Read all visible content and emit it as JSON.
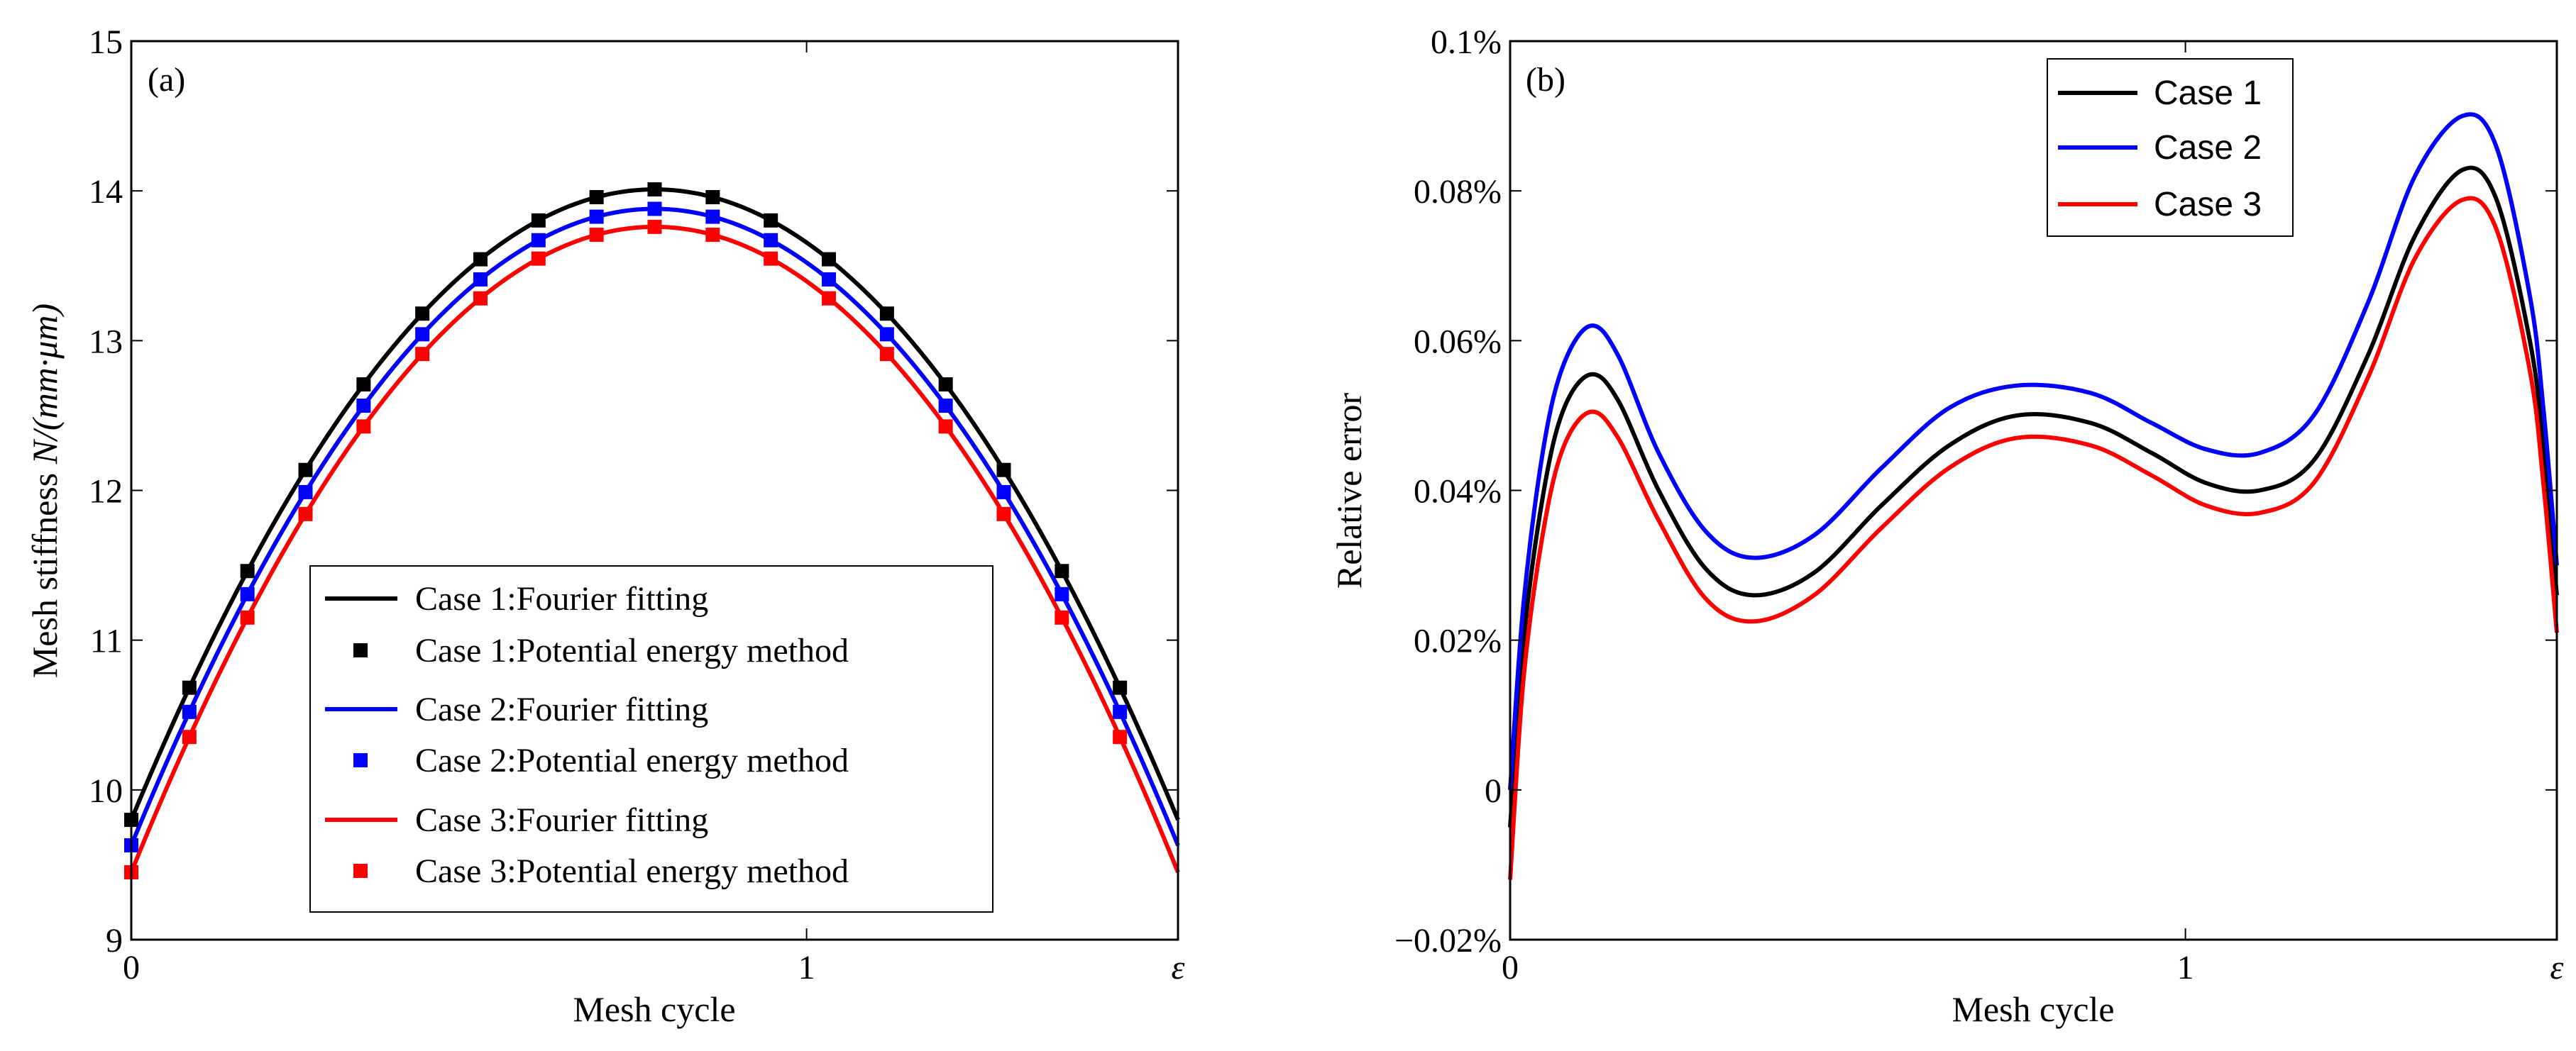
{
  "figure": {
    "panels": [
      "(a)",
      "(b)"
    ]
  },
  "chart_data": [
    {
      "type": "line",
      "panel_label": "(a)",
      "title": "",
      "xlabel": "Mesh cycle",
      "ylabel_prefix": "Mesh stiffness ",
      "ylabel_unit": "N/(mm·μm)",
      "xlim": [
        0,
        1.55
      ],
      "ylim": [
        9,
        15
      ],
      "xticks": [
        {
          "value": 0,
          "label": "0"
        },
        {
          "value": 1,
          "label": "1"
        },
        {
          "value": 1.55,
          "label": "ε"
        }
      ],
      "yticks": [
        9,
        10,
        11,
        12,
        13,
        14,
        15
      ],
      "peak_x": 0.775,
      "half_width": 0.775,
      "curve_samples": 160,
      "marker_x": [
        0,
        0.086,
        0.172,
        0.258,
        0.344,
        0.431,
        0.517,
        0.603,
        0.689,
        0.775,
        0.861,
        0.947,
        1.033,
        1.119,
        1.206,
        1.292,
        1.378,
        1.464
      ],
      "series": [
        {
          "name": "Case 1",
          "color": "#000000",
          "peak": 14.01,
          "edge": 9.8,
          "line_label": "Case 1:Fourier fitting",
          "marker_label": "Case 1:Potential energy method"
        },
        {
          "name": "Case 2",
          "color": "#0000ff",
          "peak": 13.88,
          "edge": 9.63,
          "line_label": "Case 2:Fourier fitting",
          "marker_label": "Case 2:Potential energy method"
        },
        {
          "name": "Case 3",
          "color": "#ff0000",
          "peak": 13.76,
          "edge": 9.45,
          "line_label": "Case 3:Fourier fitting",
          "marker_label": "Case 3:Potential energy method"
        }
      ],
      "legend_position": "bottom-center"
    },
    {
      "type": "line",
      "panel_label": "(b)",
      "title": "",
      "xlabel": "Mesh cycle",
      "ylabel": "Relative error",
      "xlim": [
        0,
        1.55
      ],
      "ylim": [
        -0.02,
        0.1
      ],
      "xticks": [
        {
          "value": 0,
          "label": "0"
        },
        {
          "value": 1,
          "label": "1"
        },
        {
          "value": 1.55,
          "label": "ε"
        }
      ],
      "yticks": [
        {
          "value": -0.02,
          "label": "−0.02%"
        },
        {
          "value": 0,
          "label": "0"
        },
        {
          "value": 0.02,
          "label": "0.02%"
        },
        {
          "value": 0.04,
          "label": "0.04%"
        },
        {
          "value": 0.06,
          "label": "0.06%"
        },
        {
          "value": 0.08,
          "label": "0.08%"
        },
        {
          "value": 0.1,
          "label": "0.1%"
        }
      ],
      "series": [
        {
          "name": "Case 1",
          "color": "#000000",
          "x": [
            0,
            0.02,
            0.05,
            0.08,
            0.12,
            0.16,
            0.22,
            0.29,
            0.36,
            0.45,
            0.55,
            0.65,
            0.75,
            0.86,
            0.95,
            1.03,
            1.11,
            1.19,
            1.27,
            1.34,
            1.41,
            1.46,
            1.51,
            1.53,
            1.55
          ],
          "y": [
            -0.005,
            0.02,
            0.04,
            0.051,
            0.0555,
            0.052,
            0.04,
            0.0295,
            0.026,
            0.029,
            0.038,
            0.046,
            0.05,
            0.049,
            0.045,
            0.041,
            0.04,
            0.044,
            0.058,
            0.074,
            0.0828,
            0.079,
            0.06,
            0.046,
            0.026
          ]
        },
        {
          "name": "Case 2",
          "color": "#0000ff",
          "x": [
            0,
            0.02,
            0.05,
            0.08,
            0.12,
            0.16,
            0.22,
            0.29,
            0.36,
            0.45,
            0.55,
            0.65,
            0.75,
            0.86,
            0.95,
            1.03,
            1.11,
            1.19,
            1.27,
            1.34,
            1.41,
            1.46,
            1.51,
            1.53,
            1.55
          ],
          "y": [
            0.0,
            0.025,
            0.046,
            0.057,
            0.062,
            0.058,
            0.045,
            0.0345,
            0.031,
            0.034,
            0.043,
            0.051,
            0.054,
            0.053,
            0.049,
            0.0455,
            0.045,
            0.05,
            0.065,
            0.082,
            0.09,
            0.086,
            0.066,
            0.051,
            0.03
          ]
        },
        {
          "name": "Case 3",
          "color": "#ff0000",
          "x": [
            0,
            0.02,
            0.05,
            0.08,
            0.12,
            0.16,
            0.22,
            0.29,
            0.36,
            0.45,
            0.55,
            0.65,
            0.75,
            0.86,
            0.95,
            1.03,
            1.11,
            1.19,
            1.27,
            1.34,
            1.41,
            1.46,
            1.51,
            1.53,
            1.55
          ],
          "y": [
            -0.012,
            0.015,
            0.035,
            0.046,
            0.0505,
            0.047,
            0.036,
            0.0255,
            0.0225,
            0.026,
            0.035,
            0.043,
            0.047,
            0.046,
            0.042,
            0.038,
            0.037,
            0.041,
            0.055,
            0.071,
            0.0788,
            0.075,
            0.056,
            0.041,
            0.021
          ]
        }
      ],
      "legend_position": "top-right"
    }
  ]
}
